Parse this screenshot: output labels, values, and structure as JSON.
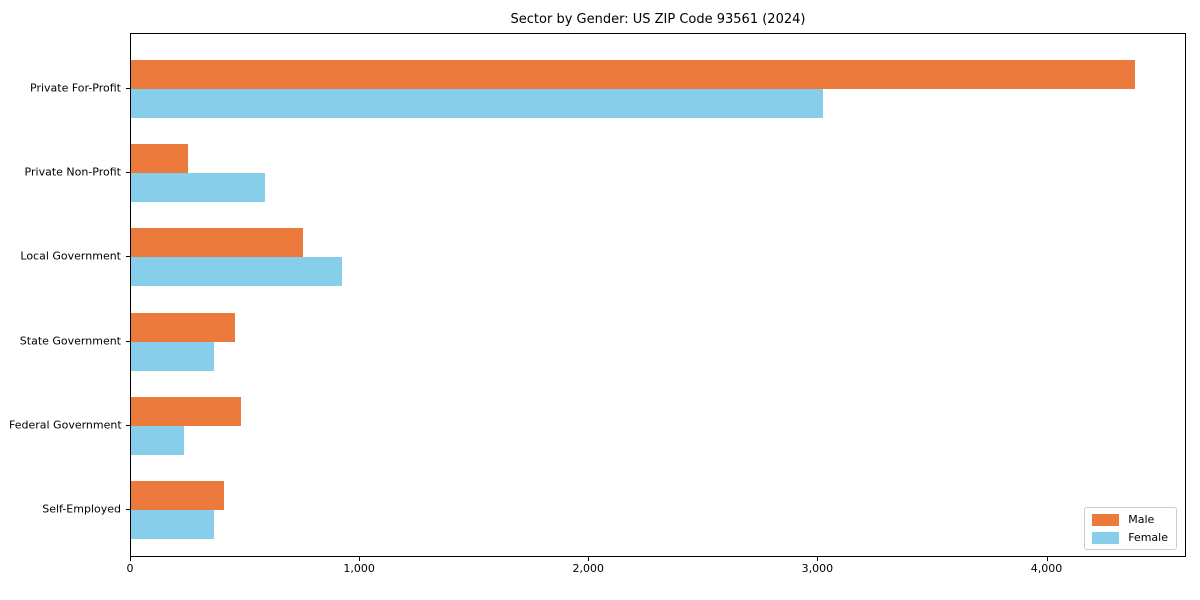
{
  "title": "Sector by Gender: US ZIP Code 93561 (2024)",
  "legend": {
    "items": [
      {
        "label": "Male",
        "color": "#EC7A3C"
      },
      {
        "label": "Female",
        "color": "#87CEEB"
      }
    ]
  },
  "chart_data": {
    "type": "bar",
    "orientation": "horizontal",
    "title": "Sector by Gender: US ZIP Code 93561 (2024)",
    "categories": [
      "Private For-Profit",
      "Private Non-Profit",
      "Local Government",
      "State Government",
      "Federal Government",
      "Self-Employed"
    ],
    "series": [
      {
        "name": "Male",
        "color": "#EC7A3C",
        "values": [
          4380,
          250,
          750,
          455,
          480,
          405
        ]
      },
      {
        "name": "Female",
        "color": "#87CEEB",
        "values": [
          3020,
          585,
          920,
          360,
          230,
          360
        ]
      }
    ],
    "xlabel": "",
    "ylabel": "",
    "xlim": [
      0,
      4600
    ],
    "xticks": [
      {
        "value": 0,
        "label": "0"
      },
      {
        "value": 1000,
        "label": "1,000"
      },
      {
        "value": 2000,
        "label": "2,000"
      },
      {
        "value": 3000,
        "label": "3,000"
      },
      {
        "value": 4000,
        "label": "4,000"
      }
    ],
    "grid": false,
    "legend_position": "lower right"
  }
}
